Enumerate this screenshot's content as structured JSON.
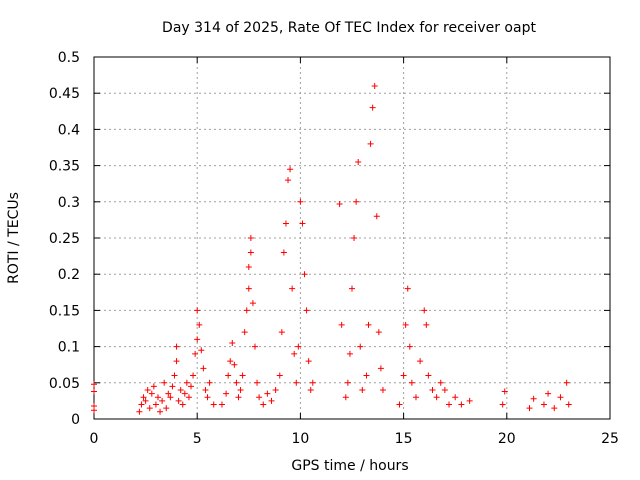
{
  "chart_data": {
    "type": "scatter",
    "title": "Day 314 of 2025, Rate Of TEC Index for receiver oapt",
    "xlabel": "GPS time / hours",
    "ylabel": "ROTI / TECUs",
    "xlim": [
      0,
      25
    ],
    "ylim": [
      0,
      0.5
    ],
    "xticks": [
      "0",
      "5",
      "10",
      "15",
      "20",
      "25"
    ],
    "yticks": [
      "0",
      "0.05",
      "0.1",
      "0.15",
      "0.2",
      "0.25",
      "0.3",
      "0.35",
      "0.4",
      "0.45",
      "0.5"
    ],
    "grid": true,
    "marker": "plus",
    "color": "#ff0000",
    "points": [
      [
        0.0,
        0.012
      ],
      [
        0.0,
        0.018
      ],
      [
        0.0,
        0.038
      ],
      [
        0.0,
        0.048
      ],
      [
        2.2,
        0.01
      ],
      [
        2.3,
        0.02
      ],
      [
        2.4,
        0.03
      ],
      [
        2.5,
        0.025
      ],
      [
        2.6,
        0.04
      ],
      [
        2.7,
        0.015
      ],
      [
        2.8,
        0.035
      ],
      [
        2.9,
        0.045
      ],
      [
        3.0,
        0.02
      ],
      [
        3.1,
        0.03
      ],
      [
        3.2,
        0.01
      ],
      [
        3.3,
        0.025
      ],
      [
        3.4,
        0.05
      ],
      [
        3.5,
        0.015
      ],
      [
        3.6,
        0.035
      ],
      [
        3.7,
        0.03
      ],
      [
        3.8,
        0.045
      ],
      [
        3.9,
        0.06
      ],
      [
        4.0,
        0.08
      ],
      [
        4.0,
        0.1
      ],
      [
        4.1,
        0.025
      ],
      [
        4.2,
        0.04
      ],
      [
        4.3,
        0.02
      ],
      [
        4.4,
        0.035
      ],
      [
        4.5,
        0.05
      ],
      [
        4.6,
        0.03
      ],
      [
        4.7,
        0.045
      ],
      [
        4.8,
        0.06
      ],
      [
        4.9,
        0.09
      ],
      [
        5.0,
        0.11
      ],
      [
        5.0,
        0.15
      ],
      [
        5.1,
        0.13
      ],
      [
        5.2,
        0.095
      ],
      [
        5.3,
        0.07
      ],
      [
        5.4,
        0.04
      ],
      [
        5.5,
        0.03
      ],
      [
        5.6,
        0.05
      ],
      [
        5.8,
        0.02
      ],
      [
        6.2,
        0.02
      ],
      [
        6.4,
        0.035
      ],
      [
        6.5,
        0.06
      ],
      [
        6.6,
        0.08
      ],
      [
        6.7,
        0.105
      ],
      [
        6.8,
        0.075
      ],
      [
        6.9,
        0.05
      ],
      [
        7.0,
        0.03
      ],
      [
        7.1,
        0.04
      ],
      [
        7.2,
        0.06
      ],
      [
        7.3,
        0.12
      ],
      [
        7.4,
        0.15
      ],
      [
        7.5,
        0.18
      ],
      [
        7.5,
        0.21
      ],
      [
        7.6,
        0.25
      ],
      [
        7.6,
        0.23
      ],
      [
        7.7,
        0.16
      ],
      [
        7.8,
        0.1
      ],
      [
        7.9,
        0.05
      ],
      [
        8.0,
        0.03
      ],
      [
        8.2,
        0.02
      ],
      [
        8.4,
        0.035
      ],
      [
        8.6,
        0.025
      ],
      [
        8.8,
        0.04
      ],
      [
        9.0,
        0.06
      ],
      [
        9.1,
        0.12
      ],
      [
        9.2,
        0.23
      ],
      [
        9.3,
        0.27
      ],
      [
        9.4,
        0.33
      ],
      [
        9.5,
        0.345
      ],
      [
        9.6,
        0.18
      ],
      [
        9.7,
        0.09
      ],
      [
        9.8,
        0.05
      ],
      [
        9.9,
        0.1
      ],
      [
        10.0,
        0.3
      ],
      [
        10.1,
        0.27
      ],
      [
        10.2,
        0.2
      ],
      [
        10.3,
        0.15
      ],
      [
        10.4,
        0.08
      ],
      [
        10.5,
        0.04
      ],
      [
        10.6,
        0.05
      ],
      [
        11.9,
        0.297
      ],
      [
        12.0,
        0.13
      ],
      [
        12.2,
        0.03
      ],
      [
        12.3,
        0.05
      ],
      [
        12.4,
        0.09
      ],
      [
        12.5,
        0.18
      ],
      [
        12.6,
        0.25
      ],
      [
        12.7,
        0.3
      ],
      [
        12.8,
        0.355
      ],
      [
        12.9,
        0.1
      ],
      [
        13.0,
        0.04
      ],
      [
        13.2,
        0.06
      ],
      [
        13.3,
        0.13
      ],
      [
        13.4,
        0.38
      ],
      [
        13.5,
        0.43
      ],
      [
        13.6,
        0.46
      ],
      [
        13.7,
        0.28
      ],
      [
        13.8,
        0.12
      ],
      [
        13.9,
        0.07
      ],
      [
        14.0,
        0.04
      ],
      [
        14.8,
        0.02
      ],
      [
        15.0,
        0.06
      ],
      [
        15.1,
        0.13
      ],
      [
        15.2,
        0.18
      ],
      [
        15.3,
        0.1
      ],
      [
        15.4,
        0.05
      ],
      [
        15.6,
        0.03
      ],
      [
        15.8,
        0.08
      ],
      [
        16.0,
        0.15
      ],
      [
        16.1,
        0.13
      ],
      [
        16.2,
        0.06
      ],
      [
        16.4,
        0.04
      ],
      [
        16.6,
        0.03
      ],
      [
        16.8,
        0.05
      ],
      [
        17.0,
        0.04
      ],
      [
        17.2,
        0.02
      ],
      [
        17.5,
        0.03
      ],
      [
        17.8,
        0.02
      ],
      [
        18.2,
        0.025
      ],
      [
        19.8,
        0.02
      ],
      [
        19.9,
        0.038
      ],
      [
        21.1,
        0.015
      ],
      [
        21.3,
        0.028
      ],
      [
        21.8,
        0.02
      ],
      [
        22.0,
        0.035
      ],
      [
        22.3,
        0.015
      ],
      [
        22.6,
        0.03
      ],
      [
        22.9,
        0.05
      ],
      [
        23.0,
        0.02
      ]
    ]
  }
}
